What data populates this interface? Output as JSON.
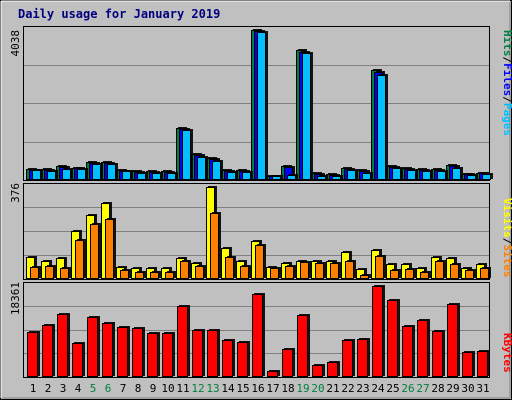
{
  "chart_data": {
    "type": "bar",
    "title": "Daily usage for January 2019",
    "days": [
      "1",
      "2",
      "3",
      "4",
      "5",
      "6",
      "7",
      "8",
      "9",
      "10",
      "11",
      "12",
      "13",
      "14",
      "15",
      "16",
      "17",
      "18",
      "19",
      "20",
      "21",
      "22",
      "23",
      "24",
      "25",
      "26",
      "27",
      "28",
      "29",
      "30",
      "31"
    ],
    "weekend_days": [
      "5",
      "6",
      "12",
      "13",
      "19",
      "20",
      "26",
      "27"
    ],
    "legend": {
      "top": [
        "Pages",
        "/",
        "Files",
        "/",
        "Hits"
      ],
      "middle": [
        "Sites",
        "/",
        "Visits"
      ],
      "bottom": [
        "KBytes"
      ]
    },
    "panels": {
      "hits_files_pages": {
        "ymax_label": "4038",
        "ymax": 4038,
        "series": [
          {
            "name": "Hits",
            "color": "#008040",
            "values": [
              290,
              290,
              380,
              330,
              490,
              490,
              270,
              240,
              240,
              240,
              1400,
              700,
              590,
              260,
              260,
              4038,
              120,
              380,
              3500,
              180,
              160,
              320,
              260,
              2950,
              380,
              320,
              300,
              290,
              400,
              160,
              200
            ]
          },
          {
            "name": "Files",
            "color": "#0000FF",
            "values": [
              270,
              270,
              360,
              310,
              460,
              470,
              250,
              220,
              220,
              220,
              1380,
              680,
              570,
              240,
              240,
              4000,
              110,
              350,
              3450,
              160,
              140,
              300,
              240,
              2900,
              360,
              300,
              280,
              270,
              380,
              150,
              190
            ]
          },
          {
            "name": "Pages",
            "color": "#00C0FF",
            "values": [
              260,
              250,
              300,
              300,
              440,
              440,
              230,
              200,
              200,
              190,
              1350,
              630,
              520,
              210,
              220,
              3980,
              95,
              140,
              3420,
              120,
              110,
              280,
              190,
              2840,
              330,
              280,
              240,
              230,
              330,
              140,
              160
            ]
          }
        ]
      },
      "visits_sites": {
        "ymax_label": "376",
        "ymax": 376,
        "series": [
          {
            "name": "Visits",
            "color": "#FFFF00",
            "values": [
              90,
              75,
              85,
              195,
              260,
              310,
              50,
              45,
              45,
              45,
              85,
              65,
              376,
              125,
              75,
              155,
              50,
              65,
              75,
              75,
              75,
              110,
              40,
              120,
              60,
              60,
              45,
              90,
              85,
              45,
              60
            ]
          },
          {
            "name": "Sites",
            "color": "#FF8000",
            "values": [
              50,
              55,
              45,
              160,
              225,
              245,
              35,
              30,
              30,
              30,
              75,
              55,
              270,
              90,
              55,
              140,
              45,
              55,
              70,
              65,
              65,
              75,
              15,
              95,
              35,
              40,
              30,
              75,
              60,
              35,
              45
            ]
          }
        ]
      },
      "kbytes": {
        "ymax_label": "18361",
        "ymax": 18361,
        "series": [
          {
            "name": "KBytes",
            "color": "#FF0000",
            "values": [
              9000,
              10400,
              12800,
              6800,
              12200,
              10900,
              10000,
              9800,
              8800,
              8900,
              14300,
              9400,
              9400,
              7500,
              7100,
              16800,
              1200,
              5600,
              12600,
              2400,
              3100,
              7500,
              7700,
              18361,
              15600,
              10200,
              11600,
              9200,
              14700,
              5000,
              5200
            ]
          }
        ]
      }
    }
  }
}
